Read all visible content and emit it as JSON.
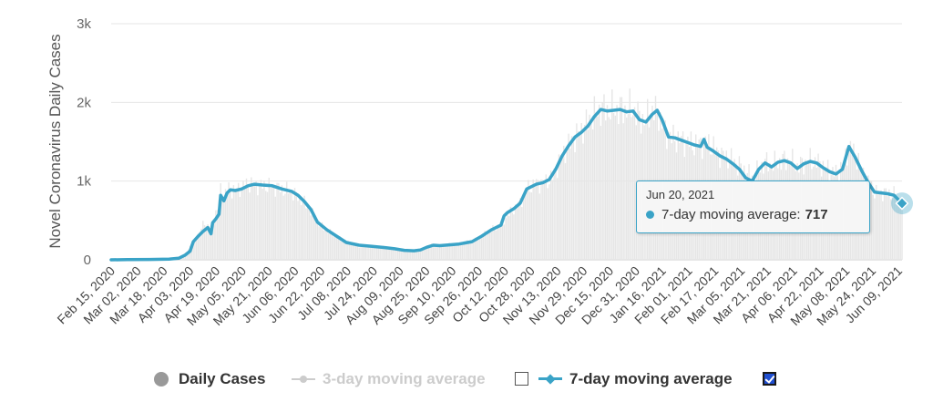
{
  "chart_data": {
    "type": "line",
    "ylabel": "Novel Coronavirus Daily Cases",
    "xlabel": "",
    "ylim": [
      0,
      3000
    ],
    "y_ticks": [
      {
        "value": 0,
        "label": "0"
      },
      {
        "value": 1000,
        "label": "1k"
      },
      {
        "value": 2000,
        "label": "2k"
      },
      {
        "value": 3000,
        "label": "3k"
      }
    ],
    "x_start": "2020-02-15",
    "x_end": "2021-06-20",
    "x_ticks": [
      "Feb 15, 2020",
      "Mar 02, 2020",
      "Mar 18, 2020",
      "Apr 03, 2020",
      "Apr 19, 2020",
      "May 05, 2020",
      "May 21, 2020",
      "Jun 06, 2020",
      "Jun 22, 2020",
      "Jul 08, 2020",
      "Jul 24, 2020",
      "Aug 09, 2020",
      "Aug 25, 2020",
      "Sep 10, 2020",
      "Sep 26, 2020",
      "Oct 12, 2020",
      "Oct 28, 2020",
      "Nov 13, 2020",
      "Nov 29, 2020",
      "Dec 15, 2020",
      "Dec 31, 2020",
      "Jan 16, 2021",
      "Feb 01, 2021",
      "Feb 17, 2021",
      "Mar 05, 2021",
      "Mar 21, 2021",
      "Apr 06, 2021",
      "Apr 22, 2021",
      "May 08, 2021",
      "May 24, 2021",
      "Jun 09, 2021"
    ],
    "grid": true,
    "legend_position": "bottom",
    "series": [
      {
        "name": "Daily Cases",
        "type": "bar",
        "color": "#e6e6e6",
        "visible": true,
        "points": [
          [
            "2020-02-15",
            0
          ],
          [
            "2020-03-18",
            15
          ],
          [
            "2020-03-28",
            30
          ],
          [
            "2020-04-01",
            80
          ],
          [
            "2020-04-05",
            200
          ],
          [
            "2020-04-09",
            320
          ],
          [
            "2020-04-13",
            480
          ],
          [
            "2020-04-15",
            430
          ],
          [
            "2020-04-17",
            400
          ],
          [
            "2020-04-19",
            560
          ],
          [
            "2020-04-21",
            640
          ],
          [
            "2020-04-23",
            880
          ],
          [
            "2020-04-25",
            820
          ],
          [
            "2020-04-28",
            900
          ],
          [
            "2020-05-02",
            880
          ],
          [
            "2020-05-06",
            930
          ],
          [
            "2020-05-10",
            960
          ],
          [
            "2020-05-15",
            950
          ],
          [
            "2020-05-21",
            940
          ],
          [
            "2020-05-28",
            920
          ],
          [
            "2020-06-02",
            880
          ],
          [
            "2020-06-06",
            870
          ],
          [
            "2020-06-10",
            800
          ],
          [
            "2020-06-14",
            720
          ],
          [
            "2020-06-18",
            620
          ],
          [
            "2020-06-22",
            480
          ],
          [
            "2020-06-28",
            370
          ],
          [
            "2020-07-04",
            300
          ],
          [
            "2020-07-10",
            220
          ],
          [
            "2020-07-18",
            180
          ],
          [
            "2020-07-26",
            170
          ],
          [
            "2020-08-03",
            160
          ],
          [
            "2020-08-09",
            140
          ],
          [
            "2020-08-15",
            120
          ],
          [
            "2020-08-21",
            110
          ],
          [
            "2020-08-25",
            120
          ],
          [
            "2020-08-29",
            170
          ],
          [
            "2020-09-02",
            190
          ],
          [
            "2020-09-06",
            180
          ],
          [
            "2020-09-12",
            190
          ],
          [
            "2020-09-18",
            200
          ],
          [
            "2020-09-26",
            230
          ],
          [
            "2020-10-02",
            300
          ],
          [
            "2020-10-08",
            380
          ],
          [
            "2020-10-14",
            450
          ],
          [
            "2020-10-18",
            560
          ],
          [
            "2020-10-22",
            640
          ],
          [
            "2020-10-26",
            730
          ],
          [
            "2020-10-30",
            900
          ],
          [
            "2020-11-05",
            970
          ],
          [
            "2020-11-11",
            990
          ],
          [
            "2020-11-15",
            1050
          ],
          [
            "2020-11-19",
            1250
          ],
          [
            "2020-11-25",
            1450
          ],
          [
            "2020-11-29",
            1550
          ],
          [
            "2020-12-05",
            1700
          ],
          [
            "2020-12-11",
            1850
          ],
          [
            "2020-12-15",
            1920
          ],
          [
            "2020-12-21",
            1900
          ],
          [
            "2020-12-27",
            1920
          ],
          [
            "2020-12-31",
            1900
          ],
          [
            "2021-01-04",
            1920
          ],
          [
            "2021-01-08",
            1800
          ],
          [
            "2021-01-12",
            1780
          ],
          [
            "2021-01-16",
            1900
          ],
          [
            "2021-01-20",
            1850
          ],
          [
            "2021-01-24",
            1600
          ],
          [
            "2021-01-28",
            1550
          ],
          [
            "2021-02-03",
            1520
          ],
          [
            "2021-02-09",
            1480
          ],
          [
            "2021-02-13",
            1460
          ],
          [
            "2021-02-17",
            1500
          ],
          [
            "2021-02-21",
            1460
          ],
          [
            "2021-02-25",
            1380
          ],
          [
            "2021-03-01",
            1320
          ],
          [
            "2021-03-07",
            1260
          ],
          [
            "2021-03-11",
            1200
          ],
          [
            "2021-03-15",
            1120
          ],
          [
            "2021-03-19",
            1050
          ],
          [
            "2021-03-23",
            1150
          ],
          [
            "2021-03-27",
            1240
          ],
          [
            "2021-03-31",
            1200
          ],
          [
            "2021-04-04",
            1240
          ],
          [
            "2021-04-08",
            1270
          ],
          [
            "2021-04-12",
            1260
          ],
          [
            "2021-04-16",
            1180
          ],
          [
            "2021-04-20",
            1230
          ],
          [
            "2021-04-24",
            1260
          ],
          [
            "2021-04-28",
            1240
          ],
          [
            "2021-05-02",
            1200
          ],
          [
            "2021-05-06",
            1130
          ],
          [
            "2021-05-10",
            1100
          ],
          [
            "2021-05-14",
            1180
          ],
          [
            "2021-05-18",
            1440
          ],
          [
            "2021-05-22",
            1330
          ],
          [
            "2021-05-26",
            1150
          ],
          [
            "2021-05-30",
            1000
          ],
          [
            "2021-06-03",
            850
          ],
          [
            "2021-06-07",
            860
          ],
          [
            "2021-06-11",
            850
          ],
          [
            "2021-06-15",
            830
          ],
          [
            "2021-06-20",
            717
          ]
        ]
      },
      {
        "name": "3-day moving average",
        "type": "line",
        "color": "#cccccc",
        "visible": false,
        "points": []
      },
      {
        "name": "7-day moving average",
        "type": "line",
        "color": "#3aa3c7",
        "visible": true,
        "points": [
          [
            "2020-02-15",
            0
          ],
          [
            "2020-02-25",
            2
          ],
          [
            "2020-03-10",
            5
          ],
          [
            "2020-03-22",
            8
          ],
          [
            "2020-03-28",
            20
          ],
          [
            "2020-04-01",
            60
          ],
          [
            "2020-04-04",
            110
          ],
          [
            "2020-04-06",
            230
          ],
          [
            "2020-04-09",
            300
          ],
          [
            "2020-04-12",
            360
          ],
          [
            "2020-04-15",
            410
          ],
          [
            "2020-04-17",
            330
          ],
          [
            "2020-04-18",
            470
          ],
          [
            "2020-04-20",
            520
          ],
          [
            "2020-04-22",
            580
          ],
          [
            "2020-04-23",
            820
          ],
          [
            "2020-04-25",
            750
          ],
          [
            "2020-04-27",
            850
          ],
          [
            "2020-04-29",
            890
          ],
          [
            "2020-05-02",
            880
          ],
          [
            "2020-05-06",
            900
          ],
          [
            "2020-05-10",
            940
          ],
          [
            "2020-05-14",
            960
          ],
          [
            "2020-05-19",
            950
          ],
          [
            "2020-05-25",
            940
          ],
          [
            "2020-05-31",
            900
          ],
          [
            "2020-06-06",
            870
          ],
          [
            "2020-06-10",
            820
          ],
          [
            "2020-06-14",
            740
          ],
          [
            "2020-06-18",
            640
          ],
          [
            "2020-06-22",
            480
          ],
          [
            "2020-06-28",
            380
          ],
          [
            "2020-07-04",
            300
          ],
          [
            "2020-07-10",
            220
          ],
          [
            "2020-07-18",
            185
          ],
          [
            "2020-07-26",
            170
          ],
          [
            "2020-08-03",
            155
          ],
          [
            "2020-08-09",
            140
          ],
          [
            "2020-08-15",
            120
          ],
          [
            "2020-08-21",
            115
          ],
          [
            "2020-08-25",
            125
          ],
          [
            "2020-08-29",
            160
          ],
          [
            "2020-09-02",
            185
          ],
          [
            "2020-09-06",
            180
          ],
          [
            "2020-09-12",
            190
          ],
          [
            "2020-09-18",
            200
          ],
          [
            "2020-09-26",
            230
          ],
          [
            "2020-10-02",
            300
          ],
          [
            "2020-10-08",
            380
          ],
          [
            "2020-10-12",
            420
          ],
          [
            "2020-10-14",
            440
          ],
          [
            "2020-10-16",
            560
          ],
          [
            "2020-10-18",
            600
          ],
          [
            "2020-10-22",
            650
          ],
          [
            "2020-10-26",
            720
          ],
          [
            "2020-10-30",
            900
          ],
          [
            "2020-11-05",
            960
          ],
          [
            "2020-11-09",
            980
          ],
          [
            "2020-11-13",
            1020
          ],
          [
            "2020-11-17",
            1150
          ],
          [
            "2020-11-21",
            1320
          ],
          [
            "2020-11-25",
            1450
          ],
          [
            "2020-11-29",
            1560
          ],
          [
            "2020-12-03",
            1620
          ],
          [
            "2020-12-07",
            1700
          ],
          [
            "2020-12-11",
            1820
          ],
          [
            "2020-12-15",
            1910
          ],
          [
            "2020-12-19",
            1890
          ],
          [
            "2020-12-23",
            1900
          ],
          [
            "2020-12-27",
            1910
          ],
          [
            "2020-12-31",
            1880
          ],
          [
            "2021-01-04",
            1890
          ],
          [
            "2021-01-08",
            1780
          ],
          [
            "2021-01-12",
            1750
          ],
          [
            "2021-01-16",
            1850
          ],
          [
            "2021-01-19",
            1900
          ],
          [
            "2021-01-22",
            1780
          ],
          [
            "2021-01-26",
            1560
          ],
          [
            "2021-01-30",
            1550
          ],
          [
            "2021-02-03",
            1520
          ],
          [
            "2021-02-07",
            1490
          ],
          [
            "2021-02-11",
            1460
          ],
          [
            "2021-02-15",
            1440
          ],
          [
            "2021-02-17",
            1530
          ],
          [
            "2021-02-19",
            1430
          ],
          [
            "2021-02-23",
            1380
          ],
          [
            "2021-02-27",
            1320
          ],
          [
            "2021-03-03",
            1280
          ],
          [
            "2021-03-07",
            1220
          ],
          [
            "2021-03-11",
            1150
          ],
          [
            "2021-03-15",
            1040
          ],
          [
            "2021-03-19",
            1000
          ],
          [
            "2021-03-23",
            1150
          ],
          [
            "2021-03-27",
            1230
          ],
          [
            "2021-03-31",
            1180
          ],
          [
            "2021-04-04",
            1240
          ],
          [
            "2021-04-08",
            1260
          ],
          [
            "2021-04-12",
            1230
          ],
          [
            "2021-04-16",
            1160
          ],
          [
            "2021-04-20",
            1220
          ],
          [
            "2021-04-24",
            1250
          ],
          [
            "2021-04-28",
            1230
          ],
          [
            "2021-05-02",
            1170
          ],
          [
            "2021-05-06",
            1120
          ],
          [
            "2021-05-10",
            1090
          ],
          [
            "2021-05-14",
            1150
          ],
          [
            "2021-05-18",
            1440
          ],
          [
            "2021-05-22",
            1300
          ],
          [
            "2021-05-26",
            1130
          ],
          [
            "2021-05-30",
            980
          ],
          [
            "2021-06-03",
            860
          ],
          [
            "2021-06-07",
            850
          ],
          [
            "2021-06-11",
            840
          ],
          [
            "2021-06-15",
            820
          ],
          [
            "2021-06-20",
            717
          ]
        ]
      }
    ]
  },
  "legend": {
    "items": [
      {
        "label": "Daily Cases",
        "enabled": true,
        "checkbox": false
      },
      {
        "label": "3-day moving average",
        "enabled": false,
        "checkbox": true,
        "checked": false
      },
      {
        "label": "7-day moving average",
        "enabled": true,
        "checkbox": true,
        "checked": true
      }
    ]
  },
  "tooltip": {
    "date": "Jun 20, 2021",
    "series_label": "7-day moving average:",
    "value": "717"
  }
}
